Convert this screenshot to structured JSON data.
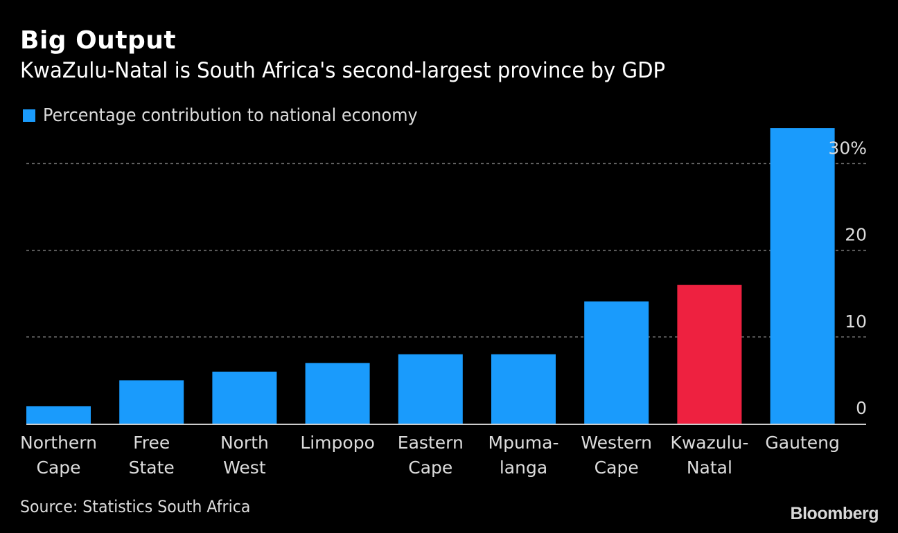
{
  "chart_data": {
    "type": "bar",
    "title": "Big Output",
    "subtitle": "KwaZulu-Natal is South Africa's second-largest province by GDP",
    "legend": [
      {
        "label": "Percentage contribution to national economy",
        "color": "#1a9bfc"
      }
    ],
    "legend_position": "top-left",
    "categories": [
      [
        "Northern",
        "Cape"
      ],
      [
        "Free",
        "State"
      ],
      [
        "North",
        "West"
      ],
      [
        "Limpopo"
      ],
      [
        "Eastern",
        "Cape"
      ],
      [
        "Mpuma-",
        "langa"
      ],
      [
        "Western",
        "Cape"
      ],
      [
        "Kwazulu-",
        "Natal"
      ],
      [
        "Gauteng"
      ]
    ],
    "series": [
      {
        "name": "Percentage contribution to national economy",
        "values": [
          2.0,
          5.0,
          6.0,
          7.0,
          8.0,
          8.0,
          14.1,
          16.0,
          34.1
        ]
      }
    ],
    "highlight_index": 7,
    "colors": {
      "default": "#1a9bfc",
      "highlight": "#ee2140",
      "grid": "#777777",
      "axis": "#cccccc"
    },
    "xlabel": "",
    "ylabel": "",
    "ylim": [
      0,
      34.1
    ],
    "yticks": [
      0,
      10,
      20,
      30
    ],
    "ytick_labels": [
      "0",
      "10",
      "20",
      "30%"
    ],
    "y_axis_side": "right",
    "grid": true,
    "source": "Source: Statistics South Africa",
    "brand": "Bloomberg"
  }
}
